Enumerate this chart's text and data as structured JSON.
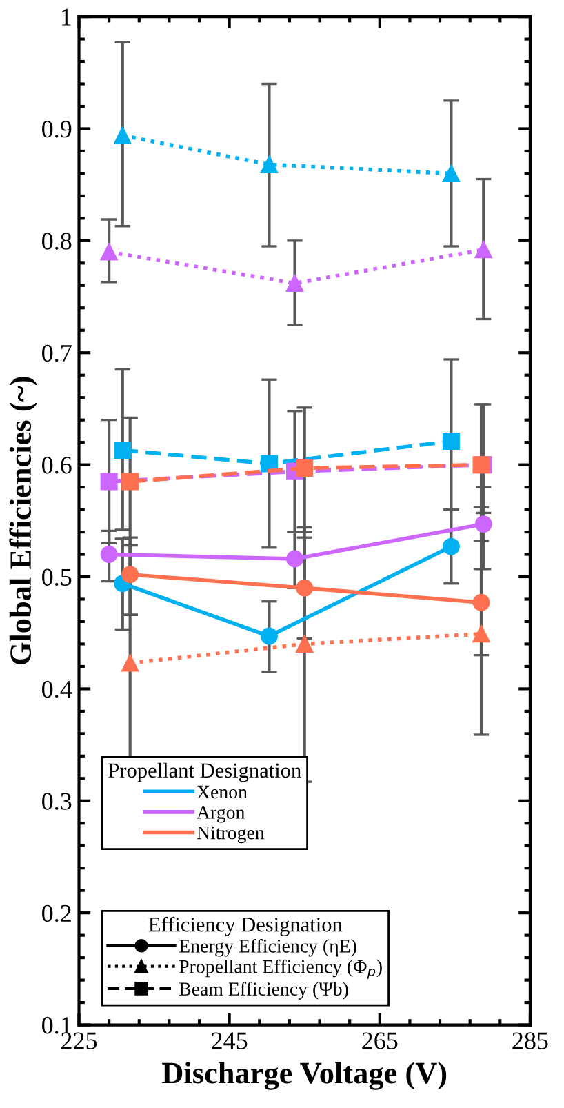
{
  "chart_data": {
    "type": "line",
    "xlabel": "Discharge Voltage (V)",
    "ylabel": "Global Efficiencies (~)",
    "xlim": [
      225,
      285
    ],
    "xticks": [
      225,
      245,
      265,
      285
    ],
    "ylim": [
      0.1,
      1
    ],
    "yticks": [
      0.1,
      0.2,
      0.3,
      0.4,
      0.5,
      0.6,
      0.7,
      0.8,
      0.9,
      1
    ],
    "legend": "bottom left",
    "legend_title": [
      "Propellant Designation",
      "Efficiency Designation"
    ],
    "series": [
      {
        "color": "#00b0f0",
        "marker": "circle",
        "line_style": "solid",
        "x": [
          230.8,
          250.3,
          274.5
        ],
        "values": [
          0.494,
          0.447,
          0.527
        ],
        "errors": [
          [
            0.453,
            0.534
          ],
          [
            0.415,
            0.478
          ],
          [
            0.494,
            0.56
          ]
        ]
      },
      {
        "color": "#00b0f0",
        "marker": "triangle",
        "line_style": "dotted",
        "x": [
          230.8,
          250.3,
          274.5
        ],
        "values": [
          0.894,
          0.868,
          0.86
        ],
        "errors": [
          [
            0.813,
            0.977
          ],
          [
            0.795,
            0.94
          ],
          [
            0.795,
            0.925
          ]
        ]
      },
      {
        "color": "#00b0f0",
        "marker": "square",
        "line_style": "dashed",
        "x": [
          230.8,
          250.3,
          274.5
        ],
        "values": [
          0.613,
          0.601,
          0.621
        ],
        "errors": [
          [
            0.542,
            0.685
          ],
          [
            0.526,
            0.676
          ],
          [
            0.56,
            0.694
          ]
        ]
      },
      {
        "color": "#cc66ff",
        "marker": "circle",
        "line_style": "solid",
        "x": [
          229,
          253.7,
          278.8
        ],
        "values": [
          0.52,
          0.516,
          0.547
        ],
        "errors": [
          [
            0.496,
            0.541
          ],
          [
            0.49,
            0.54
          ],
          [
            0.507,
            0.58
          ]
        ]
      },
      {
        "color": "#cc66ff",
        "marker": "triangle",
        "line_style": "dotted",
        "x": [
          229,
          253.7,
          278.8
        ],
        "values": [
          0.79,
          0.762,
          0.792
        ],
        "errors": [
          [
            0.763,
            0.819
          ],
          [
            0.725,
            0.8
          ],
          [
            0.73,
            0.855
          ]
        ]
      },
      {
        "color": "#cc66ff",
        "marker": "square",
        "line_style": "dashed",
        "x": [
          229,
          253.7,
          278.8
        ],
        "values": [
          0.585,
          0.594,
          0.6
        ],
        "errors": [
          [
            0.53,
            0.64
          ],
          [
            0.54,
            0.648
          ],
          [
            0.557,
            0.654
          ]
        ]
      },
      {
        "color": "#ff7050",
        "marker": "circle",
        "line_style": "solid",
        "x": [
          231.8,
          255,
          278.5
        ],
        "values": [
          0.502,
          0.49,
          0.477
        ],
        "errors": [
          [
            0.466,
            0.535
          ],
          [
            0.445,
            0.535
          ],
          [
            0.43,
            0.562
          ]
        ]
      },
      {
        "color": "#ff7050",
        "marker": "triangle",
        "line_style": "dotted",
        "x": [
          231.8,
          255,
          278.5
        ],
        "values": [
          0.423,
          0.44,
          0.449
        ],
        "errors": [
          [
            0.336,
            0.528
          ],
          [
            0.317,
            0.544
          ],
          [
            0.359,
            0.507
          ]
        ]
      },
      {
        "color": "#ff7050",
        "marker": "square",
        "line_style": "dashed",
        "x": [
          231.8,
          255,
          278.5
        ],
        "values": [
          0.585,
          0.597,
          0.6
        ],
        "errors": [
          [
            0.466,
            0.642
          ],
          [
            0.54,
            0.651
          ],
          [
            0.532,
            0.654
          ]
        ]
      },
      {
        "name": "Xenon",
        "color": "#00b0f0",
        "marker": "none",
        "line_style": "solid"
      },
      {
        "name": "Argon",
        "color": "#cc66ff",
        "marker": "none",
        "line_style": "solid"
      },
      {
        "name": "Nitrogen",
        "color": "#ff7050",
        "marker": "none",
        "line_style": "solid"
      },
      {
        "name": "Energy Efficiency (ηE)",
        "color": "#000000",
        "marker": "circle",
        "line_style": "solid"
      },
      {
        "name": "Propellant Efficiency (Φ$_{p}$)",
        "color": "#000000",
        "marker": "triangle",
        "line_style": "dotted"
      },
      {
        "name": "Beam Efficiency (Ψb)",
        "color": "#000000",
        "marker": "square",
        "line_style": "dashed"
      }
    ]
  }
}
